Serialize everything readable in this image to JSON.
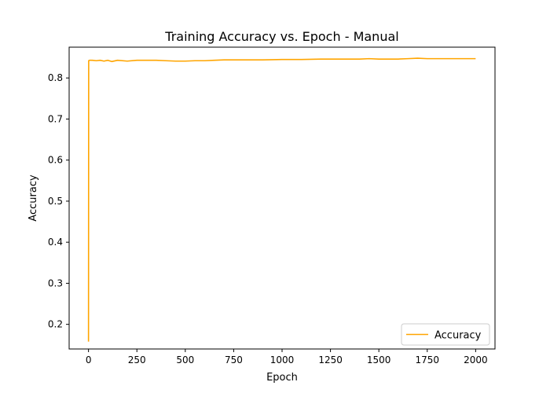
{
  "chart_data": {
    "type": "line",
    "title": "Training Accuracy vs. Epoch - Manual",
    "xlabel": "Epoch",
    "ylabel": "Accuracy",
    "xlim": [
      -100,
      2100
    ],
    "ylim": [
      0.14,
      0.875
    ],
    "xticks": [
      0,
      250,
      500,
      750,
      1000,
      1250,
      1500,
      1750,
      2000
    ],
    "yticks": [
      0.2,
      0.3,
      0.4,
      0.5,
      0.6,
      0.7,
      0.8
    ],
    "legend_position": "lower-right",
    "grid": false,
    "series": [
      {
        "name": "Accuracy",
        "color": "#FFA500",
        "x": [
          0,
          1,
          5,
          20,
          40,
          60,
          80,
          100,
          120,
          150,
          200,
          250,
          300,
          350,
          400,
          450,
          500,
          550,
          600,
          650,
          700,
          750,
          800,
          900,
          1000,
          1100,
          1200,
          1300,
          1400,
          1450,
          1500,
          1600,
          1650,
          1700,
          1750,
          1800,
          1900,
          2000
        ],
        "y": [
          0.158,
          0.842,
          0.843,
          0.843,
          0.842,
          0.843,
          0.841,
          0.843,
          0.84,
          0.843,
          0.841,
          0.843,
          0.843,
          0.843,
          0.842,
          0.841,
          0.841,
          0.842,
          0.842,
          0.843,
          0.844,
          0.844,
          0.844,
          0.844,
          0.845,
          0.845,
          0.846,
          0.846,
          0.846,
          0.847,
          0.846,
          0.846,
          0.847,
          0.848,
          0.847,
          0.847,
          0.847,
          0.847
        ]
      }
    ]
  }
}
